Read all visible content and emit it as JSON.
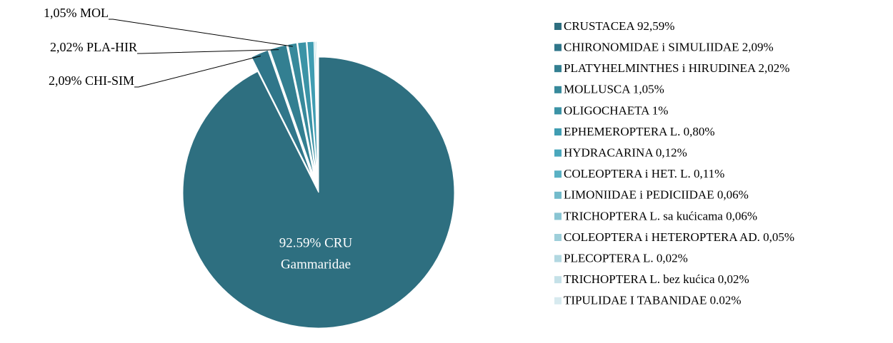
{
  "chart_data": {
    "type": "pie",
    "categories": [
      "CRUSTACEA 92,59%",
      "CHIRONOMIDAE i SIMULIIDAE 2,09%",
      "PLATYHELMINTHES i HIRUDINEA 2,02%",
      "MOLLUSCA 1,05%",
      "OLIGOCHAETA 1%",
      "EPHEMEROPTERA L. 0,80%",
      "HYDRACARINA 0,12%",
      "COLEOPTERA i HET. L. 0,11%",
      "LIMONIIDAE i PEDICIIDAE 0,06%",
      "TRICHOPTERA L. sa kućicama 0,06%",
      "COLEOPTERA i HETEROPTERA AD. 0,05%",
      "PLECOPTERA L. 0,02%",
      "TRICHOPTERA L. bez kućica 0,02%",
      "TIPULIDAE I TABANIDAE 0.02%"
    ],
    "values": [
      92.59,
      2.09,
      2.02,
      1.05,
      1,
      0.8,
      0.12,
      0.11,
      0.06,
      0.06,
      0.05,
      0.02,
      0.02,
      0.02
    ],
    "value_labels": [
      [
        "92.59% CRU",
        "Gammaridae"
      ],
      "2,09% CHI-SIM",
      "2,02% PLA-HIR",
      "1,05% MOL",
      null,
      null,
      null,
      null,
      null,
      null,
      null,
      null,
      null,
      null
    ],
    "colors": [
      "#2e6f80",
      "#30768a",
      "#337f91",
      "#37899b",
      "#3b93a6",
      "#409db2",
      "#4aa7bc",
      "#5ab1c4",
      "#73bbcb",
      "#89c5d3",
      "#9ecfda",
      "#b2d8e1",
      "#c5e1e8",
      "#d7eaef"
    ],
    "legend": "right"
  }
}
